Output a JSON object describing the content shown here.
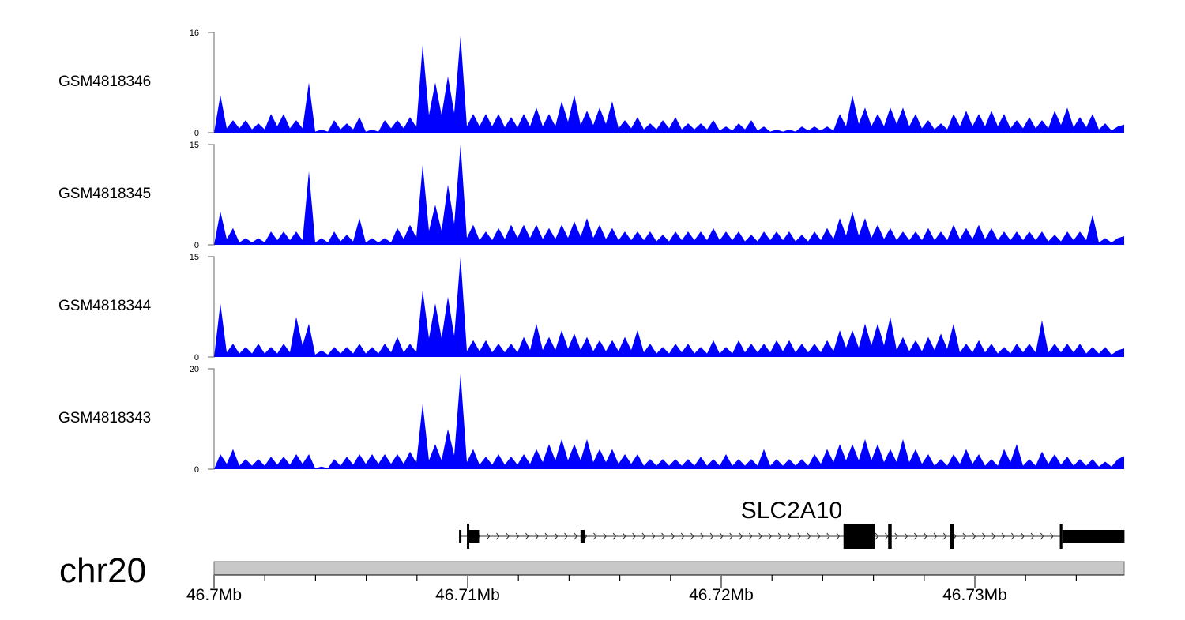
{
  "colors": {
    "coverage": "#0000ff",
    "gene": "#000000",
    "ideogram": "#c8c8c8",
    "axis": "#808080"
  },
  "chart_data": {
    "type": "area",
    "chromosome": "chr20",
    "x_unit": "kb offset from 46.700 Mb",
    "xlim_mb": [
      46.7,
      46.7359
    ],
    "bin_kb": 0.5,
    "x_tick_labels": [
      "46.7Mb",
      "46.71Mb",
      "46.72Mb",
      "46.73Mb"
    ],
    "x_tick_values_mb": [
      46.7,
      46.71,
      46.72,
      46.73
    ],
    "tracks": [
      {
        "name": "GSM4818346",
        "ylim": [
          0,
          16
        ],
        "ymin_label": "0",
        "ymax_label": "16",
        "values": [
          6,
          2,
          2,
          1.5,
          3,
          3,
          2,
          8,
          0.5,
          2,
          1.5,
          2.5,
          0.5,
          2,
          2,
          2.5,
          14,
          8,
          9,
          15.5,
          3,
          3,
          3,
          2.5,
          3,
          4,
          3,
          5,
          6,
          3.5,
          4,
          5,
          2,
          2.5,
          1.5,
          2,
          2.5,
          1.5,
          1.5,
          2,
          1,
          1.5,
          2,
          1,
          0.5,
          0.5,
          1,
          1,
          1,
          3,
          6,
          4,
          3,
          4,
          4,
          3,
          2,
          1.5,
          3,
          3.5,
          3,
          3.5,
          3,
          2,
          2.5,
          2,
          3.5,
          4,
          2.5,
          3,
          1.5,
          1
        ]
      },
      {
        "name": "GSM4818345",
        "ylim": [
          0,
          15
        ],
        "ymin_label": "0",
        "ymax_label": "15",
        "values": [
          5,
          2.5,
          1,
          1,
          2,
          2,
          2,
          11,
          1,
          2,
          1.5,
          4,
          1,
          1,
          2.5,
          3,
          12,
          6,
          9,
          15,
          3,
          2,
          2.5,
          3,
          3,
          3,
          2.5,
          3,
          3.5,
          4,
          3,
          2.5,
          2,
          2,
          2,
          1.5,
          2,
          2,
          2,
          2.5,
          2,
          2,
          1.5,
          2,
          2,
          2,
          1.5,
          2,
          2.5,
          4,
          5,
          4,
          3,
          2.5,
          2,
          2,
          2.5,
          2,
          3,
          2.5,
          3,
          2.5,
          2,
          2,
          2,
          2,
          1.5,
          2,
          2,
          4.5,
          1,
          1
        ]
      },
      {
        "name": "GSM4818344",
        "ylim": [
          0,
          15
        ],
        "ymin_label": "0",
        "ymax_label": "15",
        "values": [
          8,
          2,
          1.5,
          2,
          1.5,
          2,
          6,
          5,
          1,
          1.5,
          1.5,
          2,
          1.5,
          2,
          3,
          2,
          10,
          8,
          9,
          15,
          2.5,
          2.5,
          2,
          2,
          3,
          5,
          3,
          4,
          3.5,
          3,
          2.5,
          2.5,
          3,
          4,
          2,
          1.5,
          2,
          2,
          1.5,
          2.5,
          1.5,
          2.5,
          2,
          2,
          2.5,
          2.5,
          2,
          2,
          2.5,
          4,
          4,
          5,
          5,
          6,
          3,
          2.5,
          3,
          3.5,
          5,
          2,
          2.5,
          2,
          1.5,
          2,
          2,
          5.5,
          2,
          2,
          2,
          1.5,
          1.5,
          1
        ]
      },
      {
        "name": "GSM4818343",
        "ylim": [
          0,
          20
        ],
        "ymin_label": "0",
        "ymax_label": "20",
        "values": [
          3,
          4,
          2,
          2,
          2.5,
          2.5,
          3,
          3,
          0.5,
          2,
          2.5,
          3,
          3,
          3,
          3,
          3.5,
          13,
          5,
          8,
          19,
          4,
          2.5,
          3,
          2.5,
          3,
          4,
          5,
          6,
          5,
          6,
          4,
          4,
          3,
          3,
          2,
          2,
          2,
          2,
          2.5,
          2,
          3,
          2,
          2,
          4,
          2,
          2,
          2,
          3,
          4,
          5,
          5,
          6,
          5,
          4,
          6,
          4,
          3,
          2,
          3,
          4,
          3,
          2,
          4,
          5,
          2,
          3.5,
          3,
          2.5,
          2,
          2,
          1.5,
          2
        ]
      }
    ],
    "gene": {
      "name": "SLC2A10",
      "strand": "+",
      "intron_kb": [
        9.69,
        33.4
      ],
      "exons_kb": [
        {
          "start": 9.66,
          "end": 9.74,
          "kind": "utr"
        },
        {
          "start": 9.97,
          "end": 10.05,
          "kind": "cds"
        },
        {
          "start": 10.05,
          "end": 10.45,
          "kind": "utr"
        },
        {
          "start": 14.45,
          "end": 14.62,
          "kind": "utr"
        },
        {
          "start": 24.82,
          "end": 26.05,
          "kind": "cds"
        },
        {
          "start": 26.58,
          "end": 26.72,
          "kind": "cds"
        },
        {
          "start": 29.03,
          "end": 29.16,
          "kind": "cds"
        },
        {
          "start": 33.35,
          "end": 33.45,
          "kind": "cds"
        },
        {
          "start": 33.45,
          "end": 35.9,
          "kind": "utr"
        }
      ]
    }
  }
}
